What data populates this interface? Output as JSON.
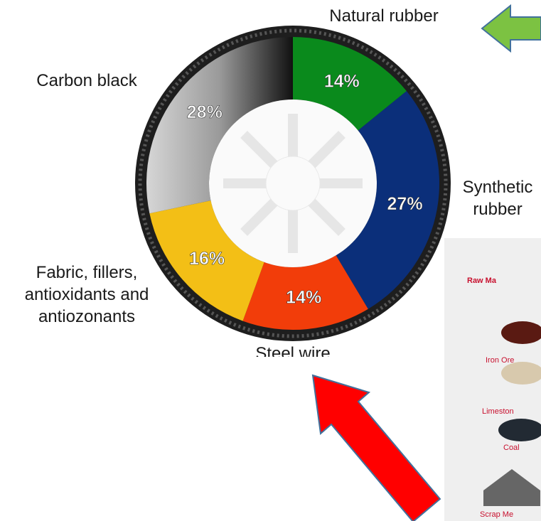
{
  "chart_data": {
    "type": "donut",
    "categories": [
      "Natural rubber",
      "Synthetic\nrubber",
      "Steel wire",
      "Fabric, fillers,\nantioxidants and\nantiozonants",
      "Carbon black"
    ],
    "values": [
      14,
      27,
      14,
      16,
      28
    ],
    "value_labels": [
      "14%",
      "27%",
      "14%",
      "16%",
      "28%"
    ],
    "colors": [
      "#0a8a1c",
      "#0b2f7a",
      "#f23d0a",
      "#f3bf16",
      "#8f8f8f"
    ]
  },
  "side_panel": {
    "title": "Raw Ma",
    "items": [
      "Iron Ore",
      "Limeston",
      "Coal",
      "Scrap Me"
    ]
  }
}
